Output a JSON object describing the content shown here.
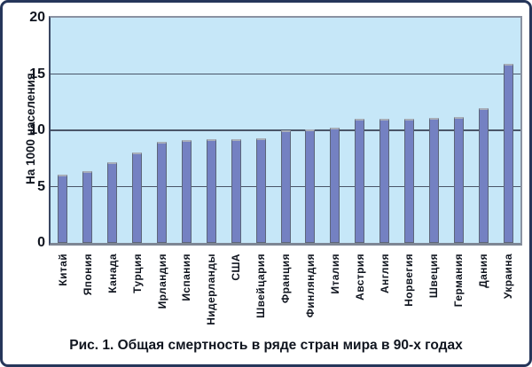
{
  "figure": {
    "caption": "Рис. 1. Общая смертность в ряде стран мира в 90-х годах"
  },
  "chart_data": {
    "type": "bar",
    "categories": [
      "Китай",
      "Япония",
      "Канада",
      "Турция",
      "Ирландия",
      "Испания",
      "Нидерланды",
      "США",
      "Швейцария",
      "Франция",
      "Финляндия",
      "Италия",
      "Австрия",
      "Англия",
      "Норвегия",
      "Швеция",
      "Германия",
      "Дания",
      "Украина"
    ],
    "values": [
      6.1,
      6.4,
      7.2,
      8.0,
      9.0,
      9.1,
      9.2,
      9.2,
      9.3,
      10.0,
      10.1,
      10.2,
      11.0,
      11.0,
      11.0,
      11.1,
      11.2,
      12.0,
      15.9
    ],
    "title": "Рис. 1. Общая смертность в ряде стран мира в 90-х годах",
    "xlabel": "",
    "ylabel": "На 1000 населения",
    "ylim": [
      0,
      20
    ],
    "yticks": [
      0,
      5,
      10,
      15,
      20
    ],
    "gridlines": [
      5,
      10,
      15
    ],
    "grid": true,
    "legend": false,
    "legend_position": "none",
    "colors": {
      "bar_fill": "#7481c2",
      "bar_edge": "#5c6579",
      "bar_top_edge": "#a8aeb9",
      "plot_bg": "#c6e7f8",
      "gridline": "#4a5568",
      "frame_border": "#26365a",
      "text": "#10151f"
    }
  }
}
